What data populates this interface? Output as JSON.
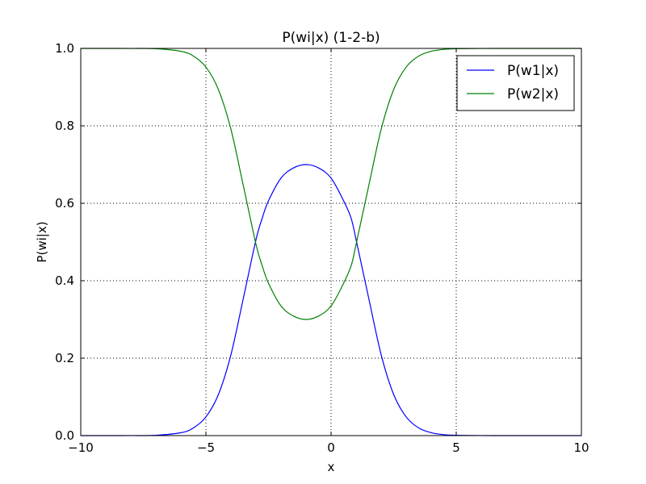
{
  "chart_data": {
    "type": "line",
    "title": "P(wi|x) (1-2-b)",
    "xlabel": "x",
    "ylabel": "P(wi|x)",
    "xlim": [
      -10,
      10
    ],
    "ylim": [
      0.0,
      1.0
    ],
    "x_ticks": [
      -10,
      -5,
      0,
      5,
      10
    ],
    "x_tick_labels": [
      "−10",
      "−5",
      "0",
      "5",
      "10"
    ],
    "y_ticks": [
      0.0,
      0.2,
      0.4,
      0.6,
      0.8,
      1.0
    ],
    "y_tick_labels": [
      "0.0",
      "0.2",
      "0.4",
      "0.6",
      "0.8",
      "1.0"
    ],
    "grid": true,
    "legend_position": "top-right",
    "x": [
      -10,
      -9,
      -8,
      -7,
      -6,
      -5.5,
      -5,
      -4.5,
      -4,
      -3.5,
      -3,
      -2.75,
      -2.5,
      -2,
      -1.5,
      -1,
      -0.5,
      0,
      0.5,
      0.8,
      1,
      1.5,
      2,
      2.5,
      3,
      3.5,
      4,
      4.5,
      5,
      6,
      7,
      8,
      9,
      10
    ],
    "series": [
      {
        "name": "P(w1|x)",
        "color": "#0000ff",
        "values": [
          0.0,
          0.0,
          0.0001,
          0.0008,
          0.0075,
          0.0197,
          0.0483,
          0.1063,
          0.209,
          0.3561,
          0.5058,
          0.5617,
          0.6065,
          0.6652,
          0.6913,
          0.7,
          0.6913,
          0.6652,
          0.6065,
          0.5617,
          0.5058,
          0.3561,
          0.209,
          0.1063,
          0.0483,
          0.0197,
          0.0075,
          0.0025,
          0.0008,
          0.0001,
          0.0,
          0.0,
          0.0,
          0.0
        ]
      },
      {
        "name": "P(w2|x)",
        "color": "#008000",
        "values": [
          1.0,
          1.0,
          0.9999,
          0.9992,
          0.9925,
          0.9803,
          0.9517,
          0.8937,
          0.791,
          0.6439,
          0.4942,
          0.4383,
          0.3935,
          0.3348,
          0.3087,
          0.3,
          0.3087,
          0.3348,
          0.3935,
          0.4383,
          0.4942,
          0.6439,
          0.791,
          0.8937,
          0.9517,
          0.9803,
          0.9925,
          0.9975,
          0.9992,
          0.9999,
          1.0,
          1.0,
          1.0,
          1.0
        ]
      }
    ]
  }
}
